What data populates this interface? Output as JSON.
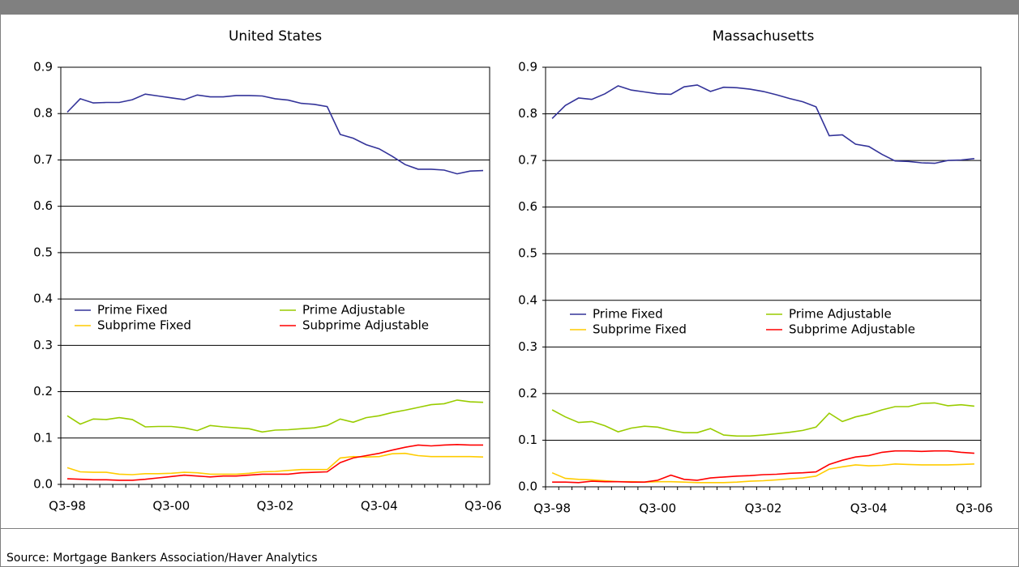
{
  "chart_data": [
    {
      "type": "line",
      "title": "United States",
      "categories": [
        "Q3-98",
        null,
        null,
        null,
        null,
        null,
        null,
        null,
        "Q3-00",
        null,
        null,
        null,
        null,
        null,
        null,
        null,
        "Q3-02",
        null,
        null,
        null,
        null,
        null,
        null,
        null,
        "Q3-04",
        null,
        null,
        null,
        null,
        null,
        null,
        null,
        "Q3-06"
      ],
      "series": [
        {
          "name": "Prime Fixed",
          "color": "#333399",
          "values": [
            0.803,
            0.832,
            0.823,
            0.824,
            0.824,
            0.83,
            0.842,
            0.838,
            0.834,
            0.83,
            0.84,
            0.836,
            0.836,
            0.839,
            0.839,
            0.838,
            0.832,
            0.829,
            0.822,
            0.82,
            0.815,
            0.755,
            0.747,
            0.733,
            0.724,
            0.708,
            0.69,
            0.68,
            0.68,
            0.678,
            0.67,
            0.676,
            0.677
          ]
        },
        {
          "name": "Prime Adjustable",
          "color": "#99cc00",
          "values": [
            0.148,
            0.13,
            0.141,
            0.14,
            0.144,
            0.14,
            0.124,
            0.125,
            0.125,
            0.122,
            0.116,
            0.127,
            0.124,
            0.122,
            0.12,
            0.113,
            0.117,
            0.118,
            0.12,
            0.122,
            0.127,
            0.141,
            0.134,
            0.144,
            0.148,
            0.155,
            0.16,
            0.166,
            0.172,
            0.174,
            0.182,
            0.178,
            0.177
          ]
        },
        {
          "name": "Subprime Fixed",
          "color": "#ffcc00",
          "values": [
            0.036,
            0.027,
            0.026,
            0.026,
            0.022,
            0.021,
            0.023,
            0.023,
            0.024,
            0.026,
            0.025,
            0.022,
            0.022,
            0.022,
            0.024,
            0.027,
            0.028,
            0.03,
            0.032,
            0.032,
            0.032,
            0.057,
            0.06,
            0.059,
            0.06,
            0.066,
            0.067,
            0.062,
            0.06,
            0.06,
            0.06,
            0.06,
            0.059
          ]
        },
        {
          "name": "Subprime Adjustable",
          "color": "#ff0000",
          "values": [
            0.012,
            0.011,
            0.01,
            0.01,
            0.009,
            0.009,
            0.011,
            0.014,
            0.017,
            0.02,
            0.018,
            0.016,
            0.018,
            0.018,
            0.02,
            0.022,
            0.022,
            0.022,
            0.025,
            0.026,
            0.027,
            0.047,
            0.057,
            0.062,
            0.067,
            0.074,
            0.08,
            0.085,
            0.083,
            0.085,
            0.086,
            0.085,
            0.085
          ]
        }
      ],
      "ylim": [
        0,
        0.9
      ],
      "yticks": [
        {
          "value": 0,
          "label": "0.0"
        },
        0.1,
        0.2,
        0.3,
        0.4,
        0.5,
        0.6,
        0.7,
        0.8,
        0.9
      ],
      "grid": true,
      "legend": "middle"
    },
    {
      "type": "line",
      "title": "Massachusetts",
      "categories": [
        "Q3-98",
        null,
        null,
        null,
        null,
        null,
        null,
        null,
        "Q3-00",
        null,
        null,
        null,
        null,
        null,
        null,
        null,
        "Q3-02",
        null,
        null,
        null,
        null,
        null,
        null,
        null,
        "Q3-04",
        null,
        null,
        null,
        null,
        null,
        null,
        null,
        "Q3-06"
      ],
      "series": [
        {
          "name": "Prime Fixed",
          "color": "#333399",
          "values": [
            0.79,
            0.818,
            0.834,
            0.831,
            0.843,
            0.86,
            0.851,
            0.847,
            0.843,
            0.842,
            0.858,
            0.862,
            0.848,
            0.857,
            0.856,
            0.853,
            0.848,
            0.841,
            0.833,
            0.826,
            0.815,
            0.753,
            0.755,
            0.735,
            0.73,
            0.713,
            0.699,
            0.698,
            0.695,
            0.694,
            0.7,
            0.701,
            0.704
          ]
        },
        {
          "name": "Prime Adjustable",
          "color": "#99cc00",
          "values": [
            0.165,
            0.15,
            0.138,
            0.14,
            0.131,
            0.118,
            0.126,
            0.13,
            0.128,
            0.121,
            0.116,
            0.116,
            0.125,
            0.111,
            0.109,
            0.109,
            0.111,
            0.114,
            0.117,
            0.121,
            0.128,
            0.158,
            0.14,
            0.15,
            0.156,
            0.165,
            0.172,
            0.172,
            0.179,
            0.18,
            0.174,
            0.176,
            0.173
          ]
        },
        {
          "name": "Subprime Fixed",
          "color": "#ffcc00",
          "values": [
            0.03,
            0.018,
            0.016,
            0.015,
            0.013,
            0.011,
            0.011,
            0.01,
            0.011,
            0.011,
            0.01,
            0.009,
            0.009,
            0.009,
            0.01,
            0.012,
            0.013,
            0.015,
            0.017,
            0.019,
            0.023,
            0.038,
            0.043,
            0.047,
            0.045,
            0.046,
            0.049,
            0.048,
            0.047,
            0.047,
            0.047,
            0.048,
            0.049
          ]
        },
        {
          "name": "Subprime Adjustable",
          "color": "#ff0000",
          "values": [
            0.01,
            0.01,
            0.009,
            0.012,
            0.011,
            0.011,
            0.01,
            0.01,
            0.014,
            0.025,
            0.016,
            0.014,
            0.019,
            0.021,
            0.023,
            0.024,
            0.026,
            0.027,
            0.029,
            0.03,
            0.032,
            0.048,
            0.057,
            0.064,
            0.067,
            0.074,
            0.077,
            0.077,
            0.076,
            0.077,
            0.077,
            0.074,
            0.072
          ]
        }
      ],
      "ylim": [
        0,
        0.9
      ],
      "yticks": [
        {
          "value": 0,
          "label": "0.0"
        },
        0.1,
        0.2,
        0.3,
        0.4,
        0.5,
        0.6,
        0.7,
        0.8,
        0.9
      ],
      "grid": true,
      "legend": "middle"
    }
  ],
  "footer": "Source: Mortgage Bankers Association/Haver Analytics"
}
